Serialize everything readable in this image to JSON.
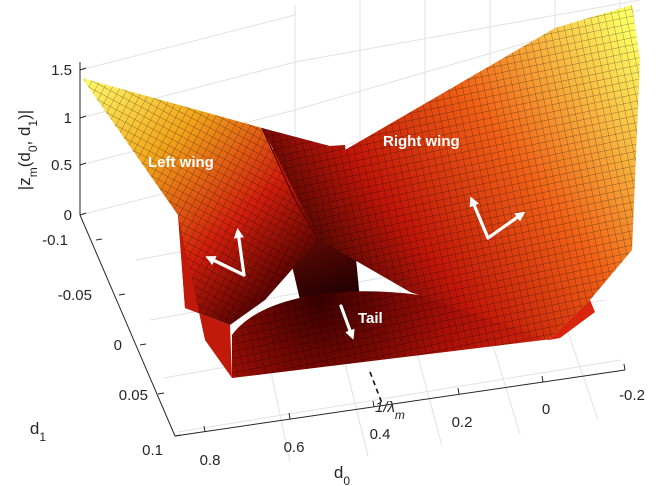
{
  "chart_data": {
    "type": "surface",
    "zlabel": "|z_m(d_0, d_1)|",
    "xlabel": "d_0",
    "ylabel": "d_1",
    "xlim": [
      -0.2,
      0.85
    ],
    "ylim": [
      -0.1,
      0.1
    ],
    "zlim": [
      0,
      1.5
    ],
    "x_ticks": [
      "0.8",
      "0.6",
      "0.4",
      "0.2",
      "0",
      "-0.2"
    ],
    "y_ticks": [
      "-0.1",
      "-0.05",
      "0",
      "0.05",
      "0.1"
    ],
    "z_ticks": [
      "0",
      "0.5",
      "1",
      "1.5"
    ],
    "grid": true,
    "colormap": "hot",
    "surface_samples": [
      {
        "d0": 0.85,
        "d1": -0.1,
        "z": 1.42
      },
      {
        "d0": 0.85,
        "d1": 0.1,
        "z": 0.0
      },
      {
        "d0": 0.42,
        "d1": -0.1,
        "z": 0.72
      },
      {
        "d0": 0.42,
        "d1": 0.0,
        "z": 0.0
      },
      {
        "d0": 0.2,
        "d1": 0.1,
        "z": 0.0
      },
      {
        "d0": -0.2,
        "d1": -0.1,
        "z": 1.6
      },
      {
        "d0": -0.2,
        "d1": 0.1,
        "z": 0.55
      }
    ],
    "annotations": [
      {
        "text": "Left wing"
      },
      {
        "text": "Right wing"
      },
      {
        "text": "Tail"
      },
      {
        "text": "1/λ_m"
      }
    ]
  }
}
